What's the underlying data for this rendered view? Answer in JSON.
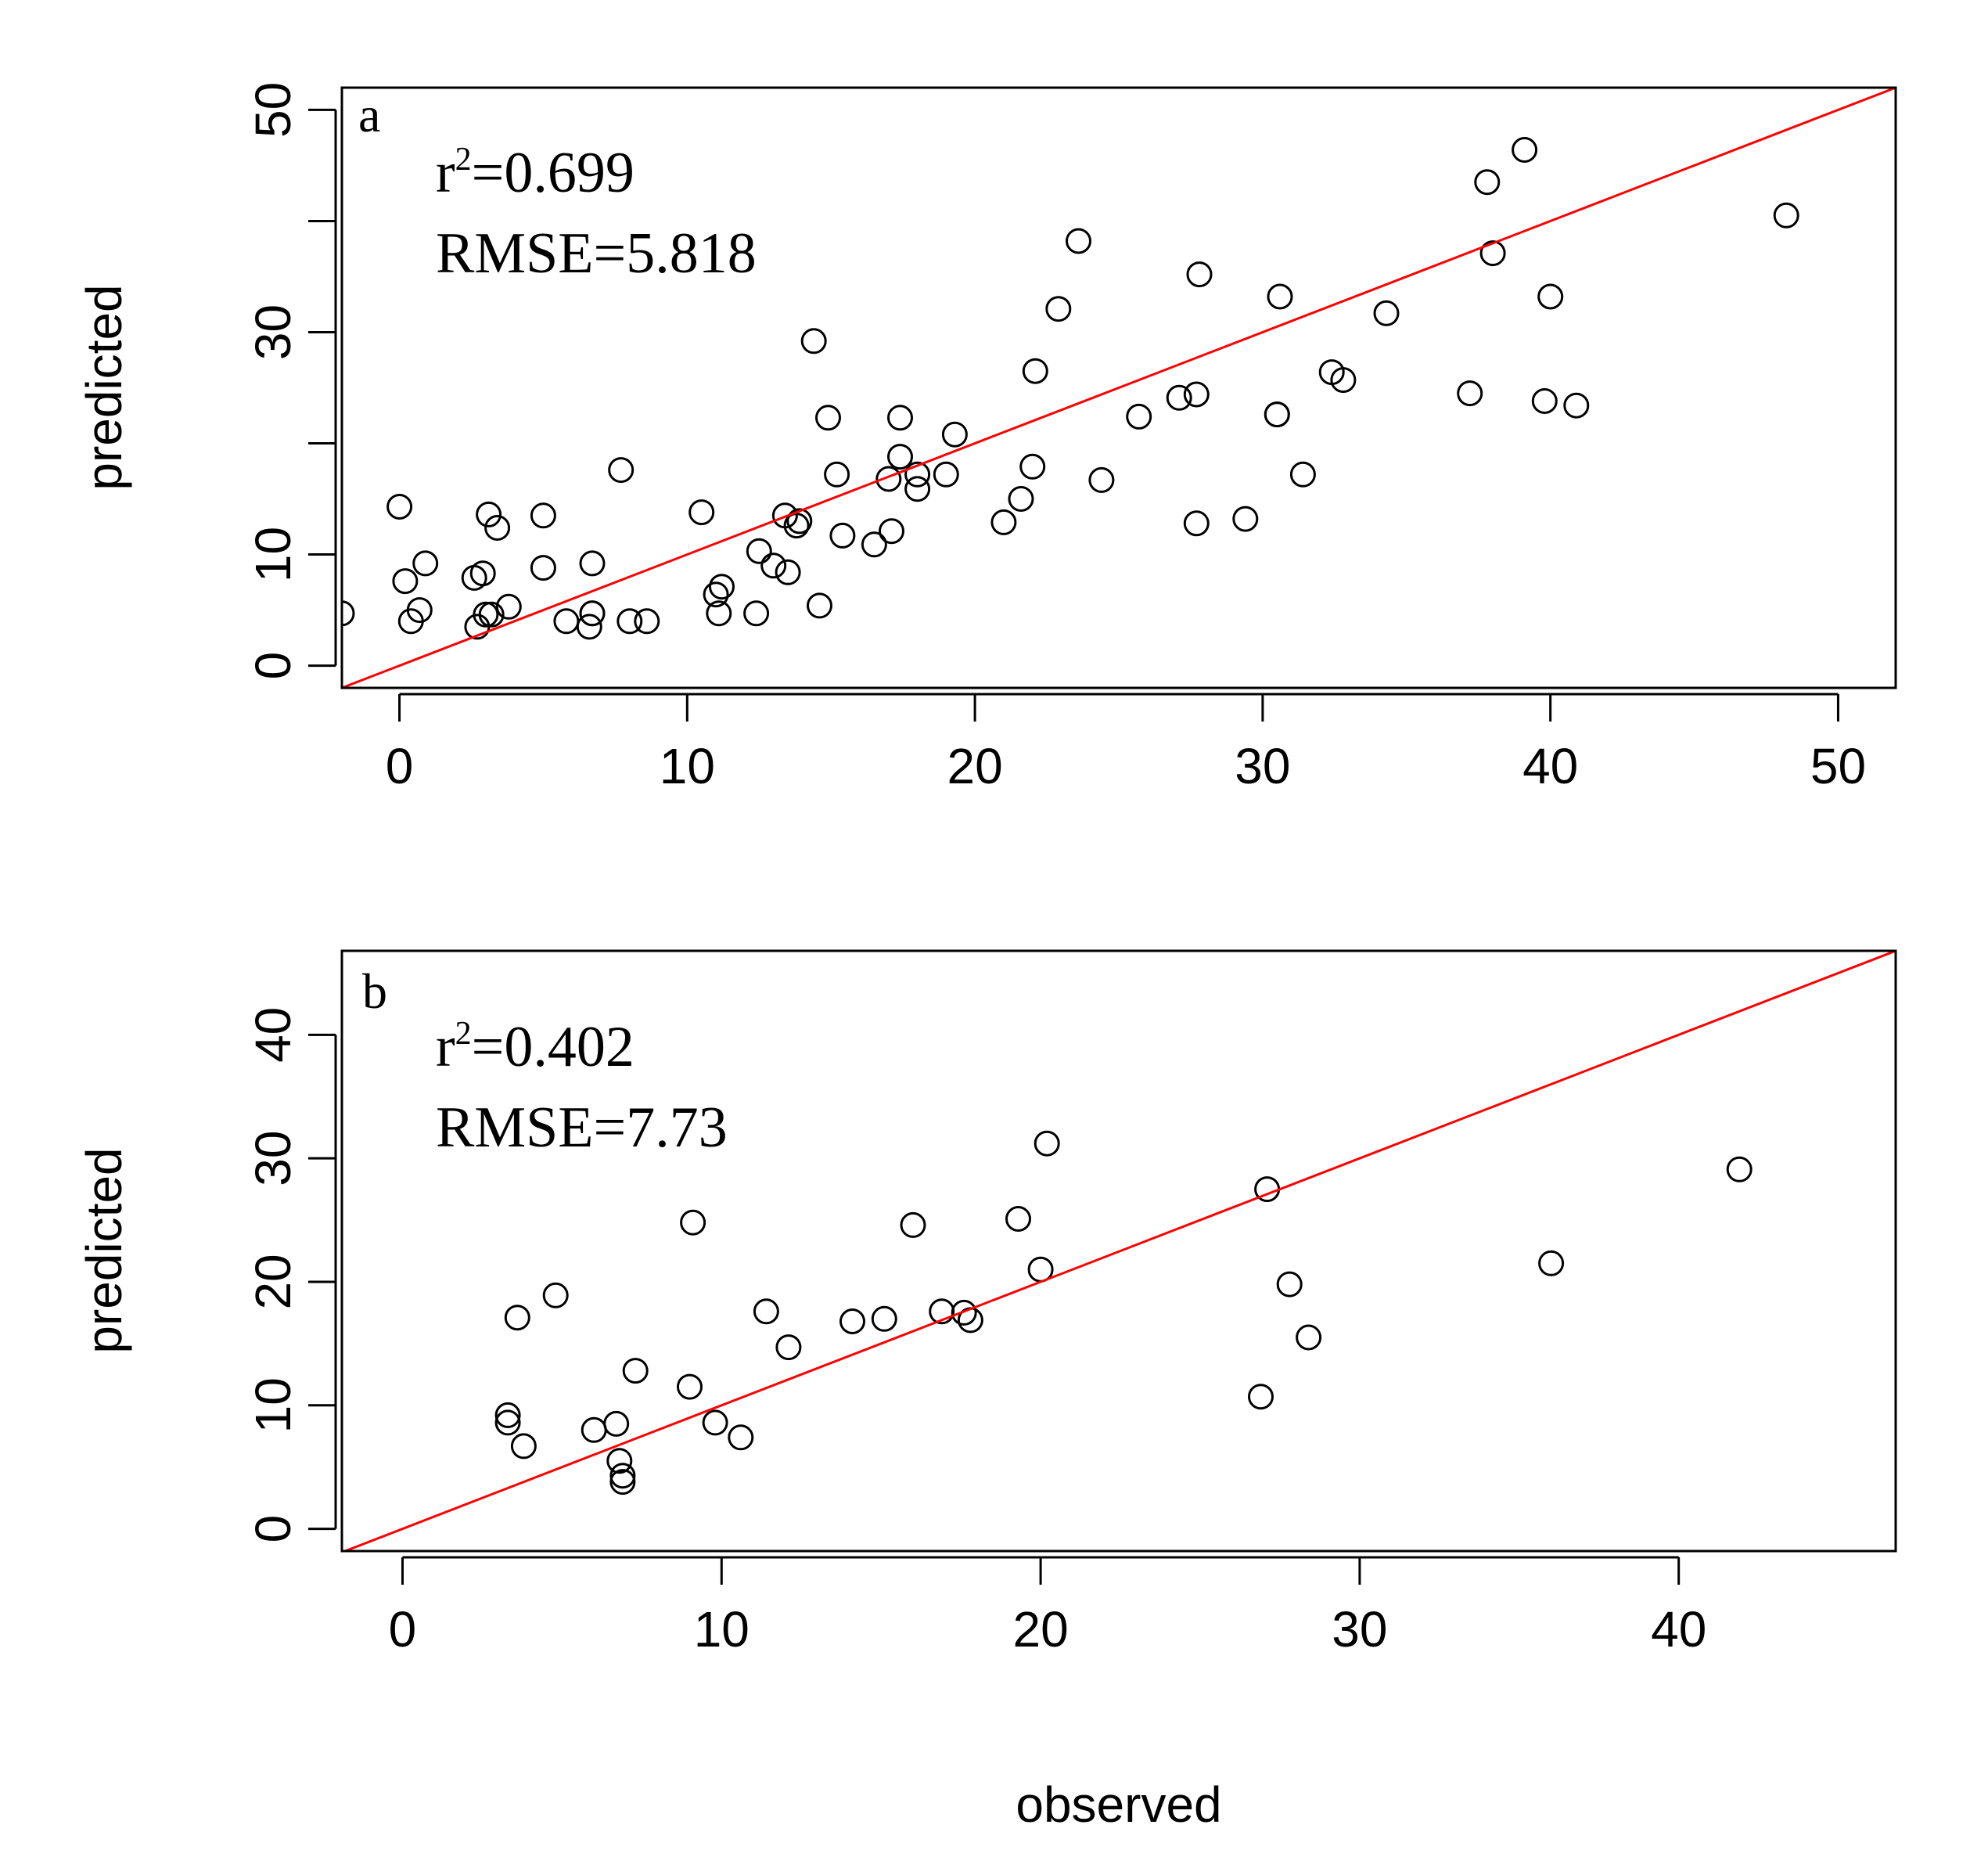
{
  "chart_data": [
    {
      "type": "scatter",
      "panel_label": "a",
      "stat_r2_prefix": "r",
      "stat_r2_sup": "2",
      "stat_r2_value": "=0.699",
      "stat_rmse": "RMSE=5.818",
      "xlabel": "",
      "ylabel": "predicted",
      "xlim": [
        -2,
        52
      ],
      "ylim": [
        -2,
        52
      ],
      "xticks": [
        0,
        10,
        20,
        30,
        40,
        50
      ],
      "yticks": [
        0,
        10,
        30,
        50
      ],
      "reference_line": {
        "slope": 1,
        "intercept": 0,
        "color": "#ff0000"
      },
      "marker_color": "#000000",
      "x": [
        -2,
        0,
        0.2,
        0.4,
        0.7,
        0.9,
        2.6,
        2.7,
        2.9,
        3.0,
        3.1,
        3.2,
        3.4,
        3.8,
        5.0,
        5.0,
        5.8,
        6.6,
        6.7,
        6.7,
        6.7,
        7.7,
        8.0,
        8.6,
        10.5,
        11.0,
        11.1,
        11.2,
        12.4,
        12.5,
        13.0,
        13.4,
        13.5,
        13.8,
        13.9,
        14.4,
        14.6,
        14.9,
        15.2,
        15.4,
        16.5,
        17.0,
        17.1,
        17.4,
        17.4,
        18.0,
        18.0,
        19.0,
        19.3,
        21.0,
        21.6,
        22.0,
        22.1,
        22.9,
        23.6,
        24.4,
        25.7,
        27.1,
        27.7,
        27.7,
        27.8,
        29.4,
        30.5,
        30.5,
        30.6,
        31.4,
        32.4,
        32.8,
        34.3,
        37.2,
        37.8,
        38.0,
        39.1,
        39.8,
        40.0,
        40.9,
        48.2
      ],
      "y": [
        4.7,
        14.3,
        7.6,
        4,
        5,
        9.2,
        7.9,
        3.5,
        8.3,
        4.6,
        13.6,
        4.6,
        12.4,
        5.3,
        13.5,
        8.8,
        4,
        3.5,
        4.7,
        4.7,
        9.2,
        17.6,
        4,
        4,
        13.8,
        6.4,
        4.7,
        7.1,
        4.7,
        10.3,
        9,
        13.5,
        8.4,
        12.6,
        13,
        29.2,
        5.4,
        22.3,
        17.2,
        11.7,
        10.9,
        16.8,
        12.1,
        18.8,
        22.3,
        17.2,
        15.9,
        17.2,
        20.8,
        12.9,
        15,
        17.9,
        26.5,
        32.1,
        38.2,
        16.7,
        22.4,
        24.1,
        24.4,
        12.8,
        35.2,
        13.2,
        22.6,
        22.6,
        33.2,
        17.2,
        26.4,
        25.7,
        31.7,
        24.5,
        43.5,
        37.1,
        46.4,
        23.8,
        33.2,
        23.4,
        40.5
      ]
    },
    {
      "type": "scatter",
      "panel_label": "b",
      "stat_r2_prefix": "r",
      "stat_r2_sup": "2",
      "stat_r2_value": "=0.402",
      "stat_rmse": "RMSE=7.73",
      "xlabel": "observed",
      "ylabel": "predicted",
      "xlim": [
        -1.9,
        46.8
      ],
      "ylim": [
        -1.8,
        46.8
      ],
      "xticks": [
        0,
        10,
        20,
        30,
        40
      ],
      "yticks": [
        0,
        10,
        20,
        30,
        40
      ],
      "reference_line": {
        "slope": 1,
        "intercept": 0,
        "color": "#ff0000"
      },
      "marker_color": "#000000",
      "x": [
        3.3,
        3.3,
        3.6,
        3.8,
        4.8,
        6.0,
        6.7,
        6.8,
        6.9,
        6.9,
        7.3,
        9.0,
        9.1,
        9.8,
        10.6,
        11.4,
        12.1,
        14.1,
        15.1,
        16.0,
        16.9,
        17.6,
        17.8,
        19.3,
        20.0,
        20.2,
        26.9,
        27.1,
        27.8,
        28.4,
        36.0,
        41.9
      ],
      "y": [
        9.2,
        8.6,
        17.1,
        6.7,
        18.9,
        8.0,
        8.5,
        5.5,
        4.3,
        3.8,
        12.8,
        11.5,
        24.8,
        8.6,
        7.4,
        17.6,
        14.7,
        16.8,
        17.0,
        24.6,
        17.6,
        17.5,
        16.9,
        25.1,
        21.0,
        31.2,
        10.7,
        27.5,
        19.8,
        15.5,
        21.5,
        29.1
      ]
    }
  ]
}
